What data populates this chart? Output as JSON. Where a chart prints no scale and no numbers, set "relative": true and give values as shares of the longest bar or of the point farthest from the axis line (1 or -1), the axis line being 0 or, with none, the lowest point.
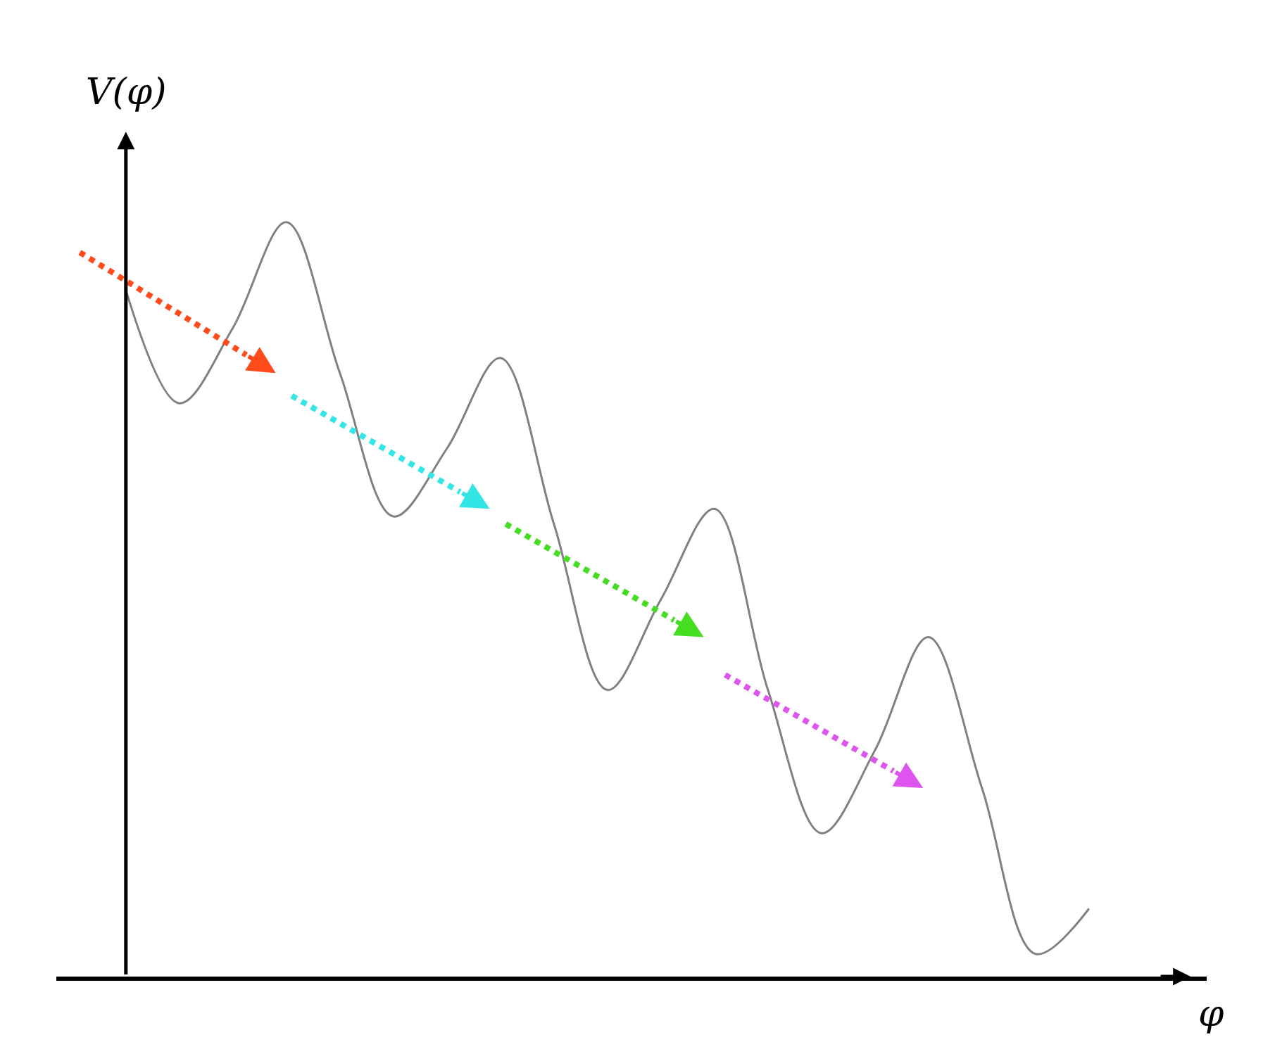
{
  "chart_data": {
    "type": "line",
    "relative": true,
    "xlabel": "φ",
    "ylabel": "V(φ)",
    "categories": [
      null,
      null,
      null,
      null,
      null,
      null,
      null,
      null,
      null,
      null,
      null,
      null,
      null,
      null,
      null,
      null,
      null,
      null,
      null
    ],
    "series": [
      {
        "color": "#808080",
        "values": [
          0.91,
          0.76,
          0.86,
          1,
          0.8,
          0.61,
          0.7,
          0.82,
          0.6,
          0.38,
          0.5,
          0.62,
          0.38,
          0.19,
          0.3,
          0.45,
          0.25,
          0.03,
          0.09
        ]
      }
    ],
    "marker": "none",
    "line_style": "solid"
  }
}
